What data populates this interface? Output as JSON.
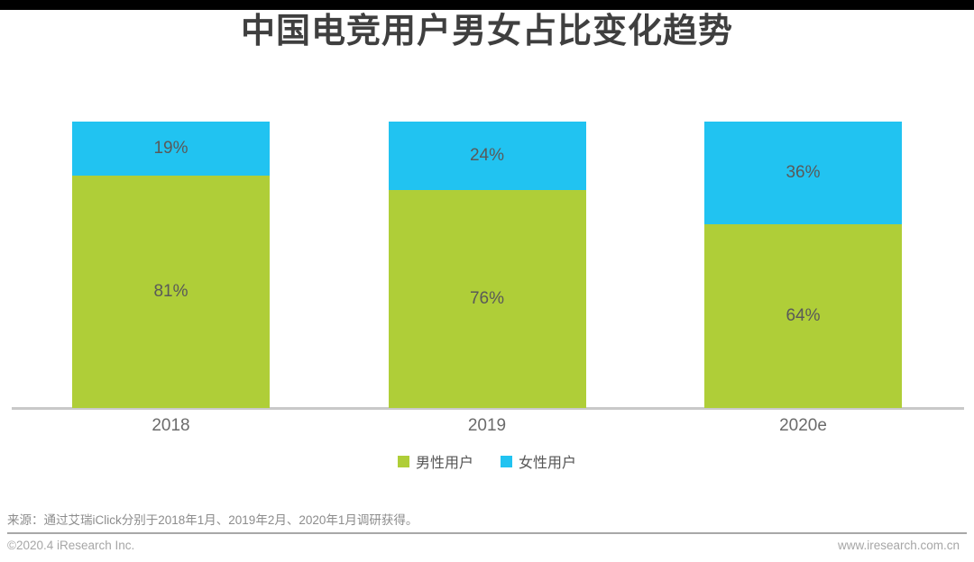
{
  "title": "中国电竞用户男女占比变化趋势",
  "chart_data": {
    "type": "bar",
    "stacked": true,
    "categories": [
      "2018",
      "2019",
      "2020e"
    ],
    "series": [
      {
        "name": "男性用户",
        "color": "#afce38",
        "values": [
          81,
          76,
          64
        ]
      },
      {
        "name": "女性用户",
        "color": "#21c3f1",
        "values": [
          19,
          24,
          36
        ]
      }
    ],
    "value_suffix": "%",
    "ylim": [
      0,
      100
    ],
    "grid": false,
    "legend_position": "bottom",
    "axis_line_color": "#c9c9c9"
  },
  "source_note": "来源：通过艾瑞iClick分别于2018年1月、2019年2月、2020年1月调研获得。",
  "footer": {
    "copyright": "©2020.4 iResearch Inc.",
    "website": "www.iresearch.com.cn"
  },
  "colors": {
    "topbar": "#000000",
    "title_text": "#3f3f3f"
  }
}
